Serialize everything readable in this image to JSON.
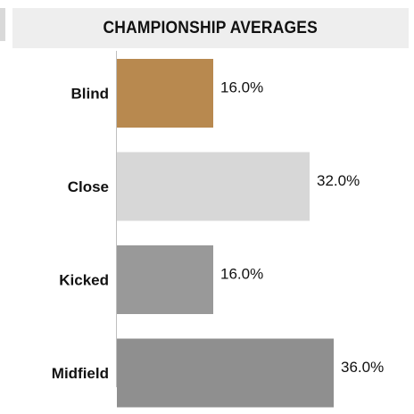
{
  "header": {
    "title": "CHAMPIONSHIP AVERAGES"
  },
  "chart_data": {
    "type": "bar",
    "orientation": "horizontal",
    "title": "CHAMPIONSHIP AVERAGES",
    "categories": [
      "Blind",
      "Close",
      "Kicked",
      "Midfield"
    ],
    "values": [
      16.0,
      32.0,
      16.0,
      36.0
    ],
    "value_labels": [
      "16.0%",
      "32.0%",
      "16.0%",
      "36.0%"
    ],
    "colors": [
      "#b8894f",
      "#d7d7d7",
      "#999999",
      "#8f8f8f"
    ],
    "xlim": [
      0,
      40
    ],
    "grid": false,
    "legend": "none"
  }
}
